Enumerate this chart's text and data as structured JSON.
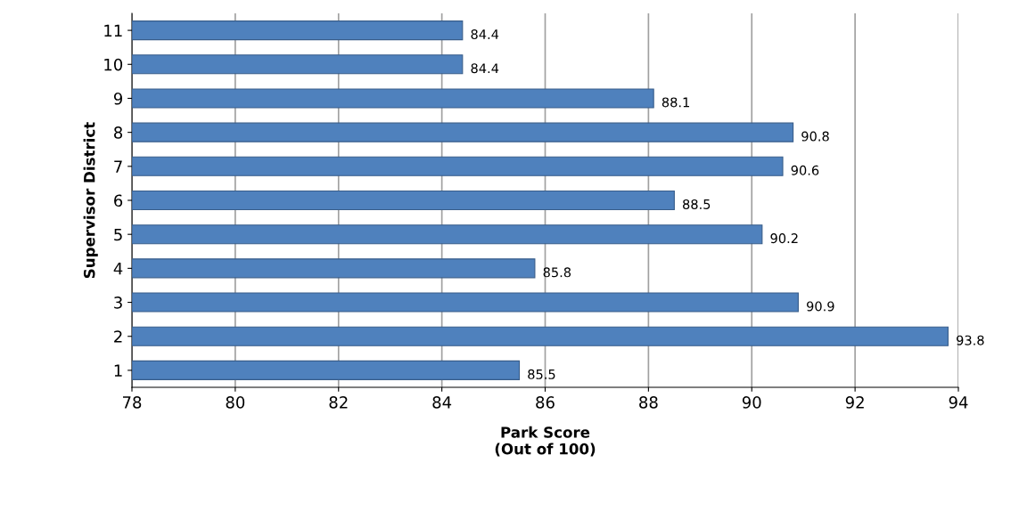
{
  "chart_data": {
    "type": "bar",
    "orientation": "horizontal",
    "categories": [
      "11",
      "10",
      "9",
      "8",
      "7",
      "6",
      "5",
      "4",
      "3",
      "2",
      "1"
    ],
    "values": [
      84.4,
      84.4,
      88.1,
      90.8,
      90.6,
      88.5,
      90.2,
      85.8,
      90.9,
      93.8,
      85.5
    ],
    "color": "#4f81bd",
    "xlabel": "Park Score\n(Out of 100)",
    "ylabel": "Supervisor District",
    "xlim": [
      78,
      94
    ],
    "xticks": [
      78,
      80,
      82,
      84,
      86,
      88,
      90,
      92,
      94
    ],
    "grid": "x",
    "data_labels": true
  }
}
